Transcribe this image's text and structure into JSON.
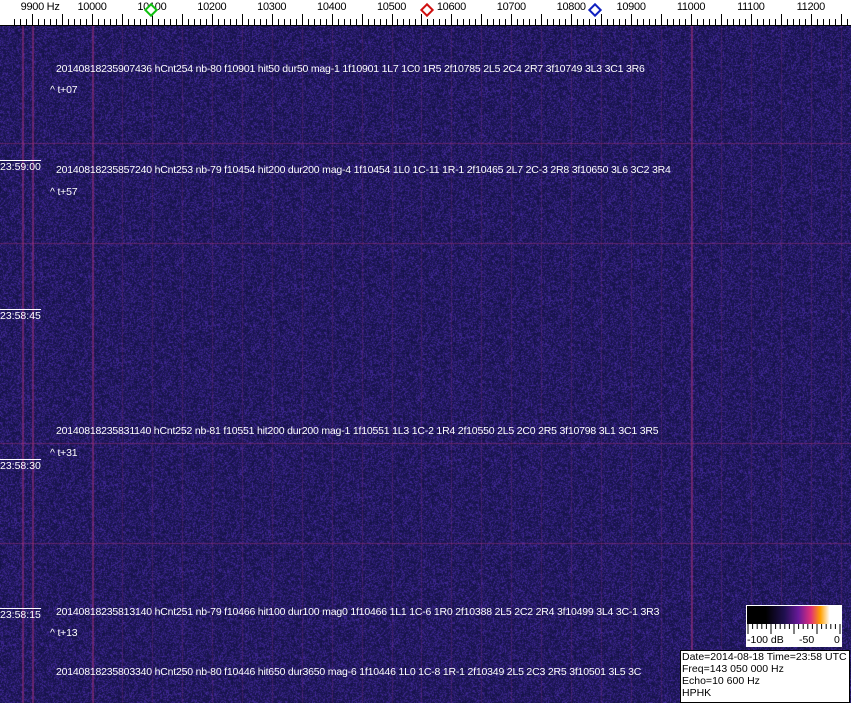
{
  "frequency_axis": {
    "labels": [
      "9900 Hz",
      "10000",
      "10100",
      "10200",
      "10300",
      "10400",
      "10500",
      "10600",
      "10700",
      "10800",
      "10900",
      "11000",
      "11100",
      "11200"
    ],
    "values": [
      9900,
      10000,
      10100,
      10200,
      10300,
      10400,
      10500,
      10600,
      10700,
      10800,
      10900,
      11000,
      11100,
      11200
    ]
  },
  "markers": [
    {
      "name": "green-marker",
      "freq": 10098,
      "color": "#10c010"
    },
    {
      "name": "red-marker",
      "freq": 10560,
      "color": "#d01010"
    },
    {
      "name": "blue-marker",
      "freq": 10840,
      "color": "#1020c0"
    }
  ],
  "time_labels": [
    "23:59:00",
    "23:58:45",
    "23:58:30",
    "23:58:15"
  ],
  "detections": [
    {
      "text": "20140818235907436 hCnt254 nb-80 f10901 hit50 dur50 mag-1 1f10901 1L7 1C0 1R5 2f10785 2L5 2C4 2R7 3f10749 3L3 3C1 3R6",
      "offset": "^ t+07"
    },
    {
      "text": "20140818235857240 hCnt253 nb-79 f10454 hit200 dur200 mag-4 1f10454 1L0 1C-11 1R-1 2f10465 2L7 2C-3 2R8 3f10650 3L6 3C2 3R4",
      "offset": "^ t+57"
    },
    {
      "text": "20140818235831140 hCnt252 nb-81 f10551 hit200 dur200 mag-1 1f10551 1L3 1C-2 1R4 2f10550 2L5 2C0 2R5 3f10798 3L1 3C1 3R5",
      "offset": "^ t+31"
    },
    {
      "text": "20140818235813140 hCnt251 nb-79 f10466 hit100 dur100 mag0 1f10466 1L1 1C-6 1R0 2f10388 2L5 2C2 2R4 3f10499 3L4 3C-1 3R3",
      "offset": "^ t+13"
    },
    {
      "text": "20140818235803340 hCnt250 nb-80 f10446 hit650 dur3650 mag-6 1f10446 1L0 1C-8 1R-1 2f10349 2L5 2C3 2R5 3f10501 3L5 3C",
      "offset": ""
    }
  ],
  "legend": {
    "labels": [
      "-100 dB",
      "-50",
      "0"
    ]
  },
  "info": {
    "date_time": "Date=2014-08-18 Time=23:58 UTC",
    "freq": "Freq=143 050 000 Hz",
    "echo": "Echo=10 600 Hz",
    "station": "HPHK"
  },
  "colors": {
    "background": "#1c1a6a",
    "line": "#a0307a"
  }
}
